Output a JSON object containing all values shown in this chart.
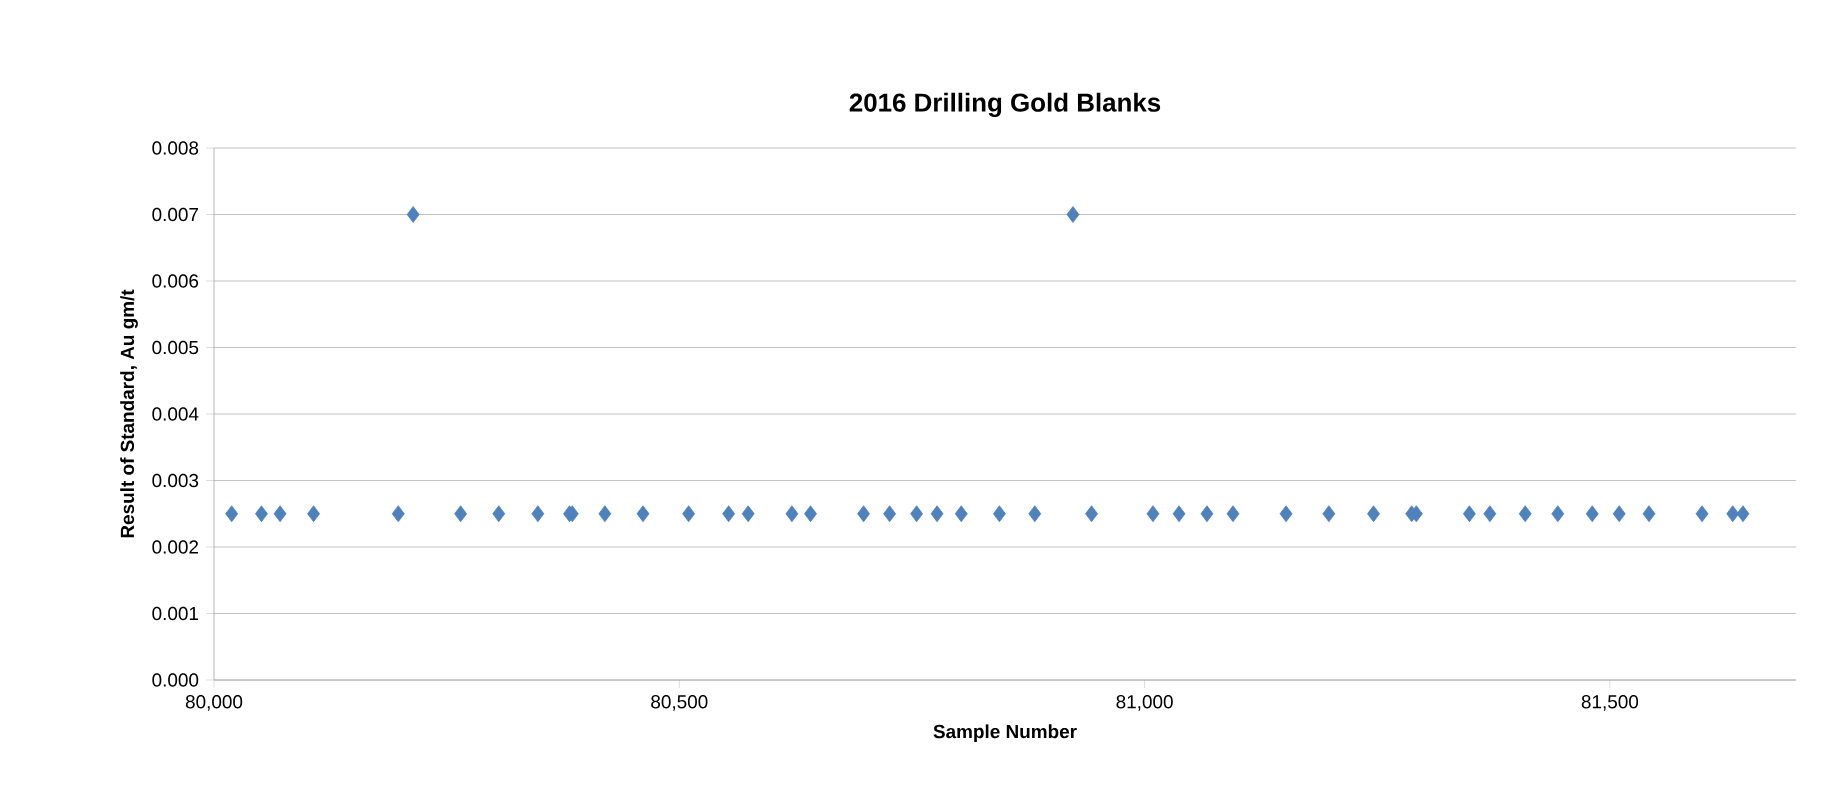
{
  "chart_data": {
    "type": "scatter",
    "title": "2016 Drilling Gold Blanks",
    "xlabel": "Sample Number",
    "ylabel": "Result of Standard, Au gm/t",
    "x": [
      80019,
      80051,
      80071,
      80107,
      80198,
      80214,
      80265,
      80306,
      80348,
      80382,
      80385,
      80420,
      80461,
      80510,
      80553,
      80574,
      80621,
      80641,
      80698,
      80726,
      80755,
      80777,
      80803,
      80844,
      80882,
      80923,
      80943,
      81009,
      81037,
      81067,
      81095,
      81152,
      81198,
      81246,
      81287,
      81292,
      81349,
      81371,
      81409,
      81444,
      81481,
      81510,
      81542,
      81599,
      81632,
      81643
    ],
    "values": [
      0.0025,
      0.0025,
      0.0025,
      0.0025,
      0.0025,
      0.007,
      0.0025,
      0.0025,
      0.0025,
      0.0025,
      0.0025,
      0.0025,
      0.0025,
      0.0025,
      0.0025,
      0.0025,
      0.0025,
      0.0025,
      0.0025,
      0.0025,
      0.0025,
      0.0025,
      0.0025,
      0.0025,
      0.0025,
      0.007,
      0.0025,
      0.0025,
      0.0025,
      0.0025,
      0.0025,
      0.0025,
      0.0025,
      0.0025,
      0.0025,
      0.0025,
      0.0025,
      0.0025,
      0.0025,
      0.0025,
      0.0025,
      0.0025,
      0.0025,
      0.0025,
      0.0025,
      0.0025
    ],
    "color": "#4f81bd",
    "marker": "diamond",
    "grid": "y",
    "xlim": [
      80000,
      81700
    ],
    "ylim": [
      0,
      0.008
    ],
    "xticks": [
      {
        "value": 80000,
        "label": "80,000"
      },
      {
        "value": 80500,
        "label": "80,500"
      },
      {
        "value": 81000,
        "label": "81,000"
      },
      {
        "value": 81500,
        "label": "81,500"
      }
    ],
    "yticks": [
      {
        "value": 0,
        "label": "0.000"
      },
      {
        "value": 0.001,
        "label": "0.001"
      },
      {
        "value": 0.002,
        "label": "0.002"
      },
      {
        "value": 0.003,
        "label": "0.003"
      },
      {
        "value": 0.004,
        "label": "0.004"
      },
      {
        "value": 0.005,
        "label": "0.005"
      },
      {
        "value": 0.006,
        "label": "0.006"
      },
      {
        "value": 0.007,
        "label": "0.007"
      },
      {
        "value": 0.008,
        "label": "0.008"
      }
    ]
  }
}
